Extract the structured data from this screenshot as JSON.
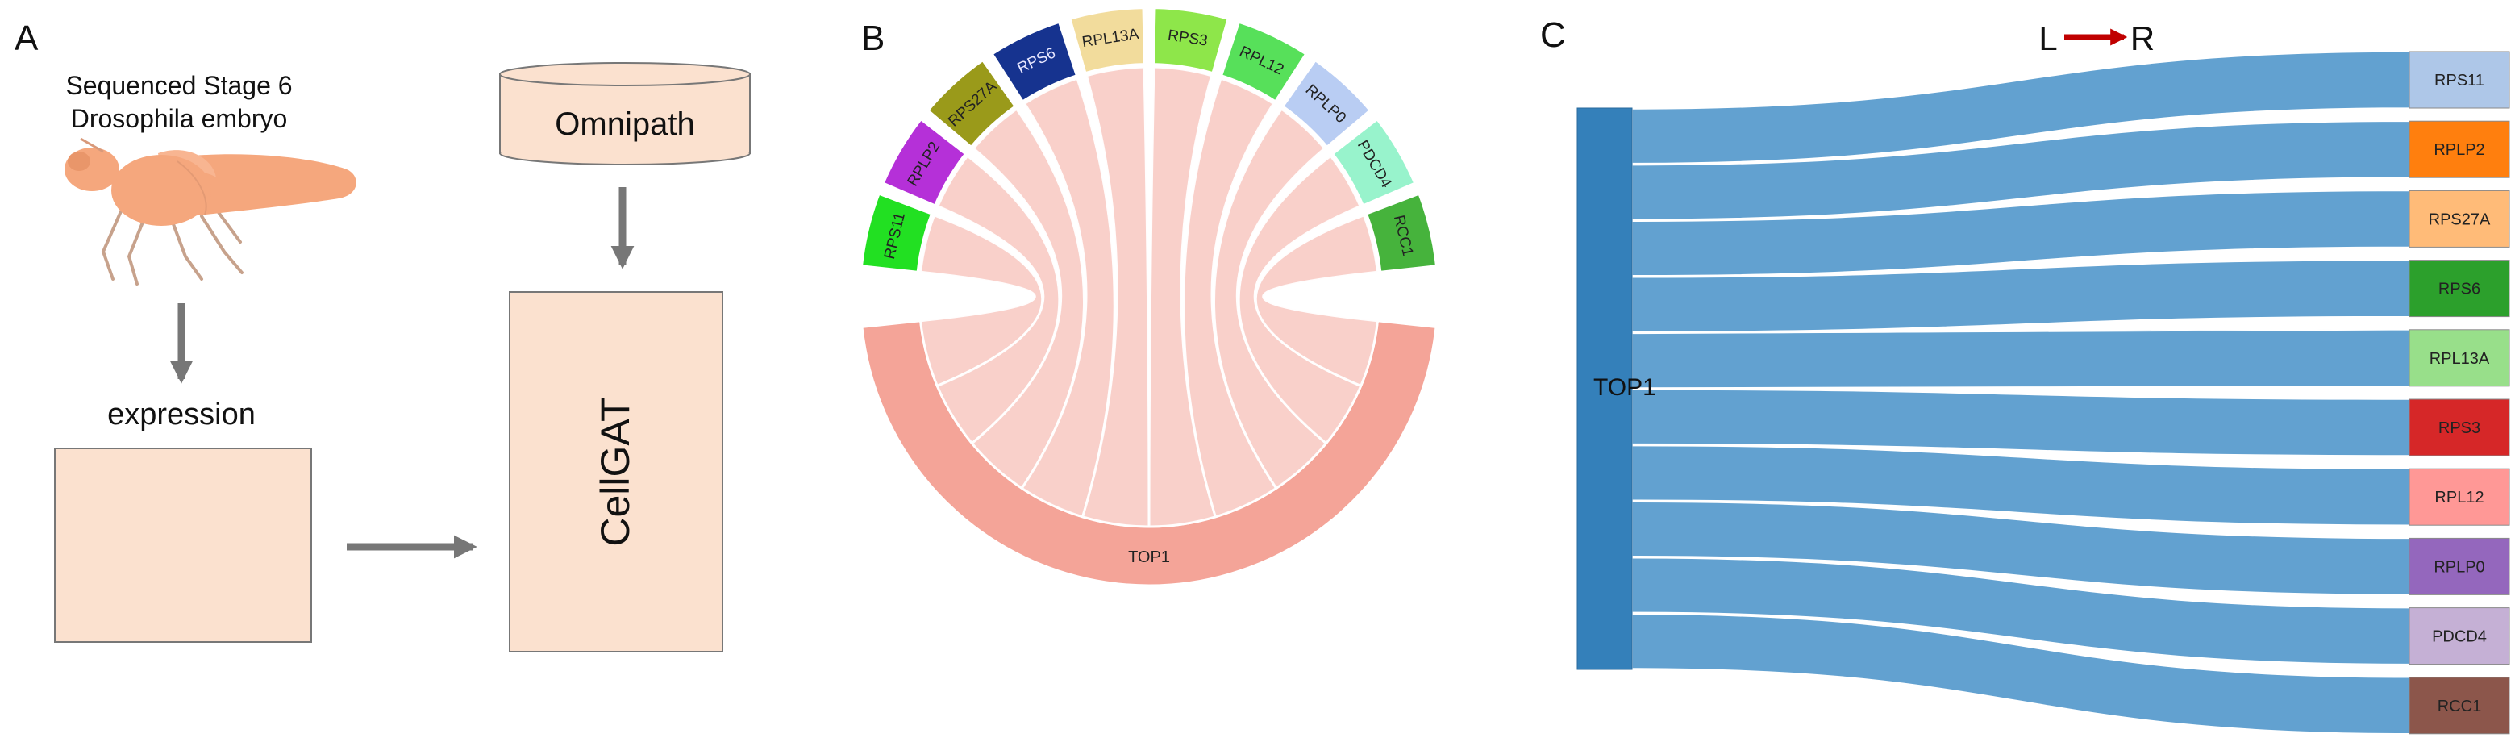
{
  "panels": {
    "a": {
      "letter": "A",
      "caption_line1": "Sequenced Stage 6",
      "caption_line2": "Drosophila embryo",
      "expression_label": "expression",
      "database_label": "Omnipath",
      "model_label": "CellGAT"
    },
    "b": {
      "letter": "B",
      "target_label": "TOP1",
      "genes": [
        {
          "name": "RPS11",
          "color": "#22e022"
        },
        {
          "name": "RPLP2",
          "color": "#b530d8"
        },
        {
          "name": "RPS27A",
          "color": "#9a9a1a"
        },
        {
          "name": "RPS6",
          "color": "#16338f"
        },
        {
          "name": "RPL13A",
          "color": "#f2dc9c"
        },
        {
          "name": "RPS3",
          "color": "#8ee64a"
        },
        {
          "name": "RPL12",
          "color": "#57e05a"
        },
        {
          "name": "RPLP0",
          "color": "#b9cdf3"
        },
        {
          "name": "PDCD4",
          "color": "#98f3cc"
        },
        {
          "name": "RCC1",
          "color": "#46b33c"
        }
      ],
      "target_color": "#f4a498",
      "link_color": "#f9d0ca"
    },
    "c": {
      "letter": "C",
      "direction_left": "L",
      "direction_right": "R",
      "arrow_color": "#c00000",
      "source_label": "TOP1",
      "source_color": "#3480ba",
      "link_color": "#5f9fcf",
      "targets": [
        {
          "name": "RPS11",
          "color": "#aec7e8"
        },
        {
          "name": "RPLP2",
          "color": "#ff7f0e"
        },
        {
          "name": "RPS27A",
          "color": "#ffbb78"
        },
        {
          "name": "RPS6",
          "color": "#2ca02c"
        },
        {
          "name": "RPL13A",
          "color": "#98df8a"
        },
        {
          "name": "RPS3",
          "color": "#d62728"
        },
        {
          "name": "RPL12",
          "color": "#ff9896"
        },
        {
          "name": "RPLP0",
          "color": "#9467bd"
        },
        {
          "name": "PDCD4",
          "color": "#c5b0d5"
        },
        {
          "name": "RCC1",
          "color": "#8c564b"
        }
      ]
    }
  }
}
